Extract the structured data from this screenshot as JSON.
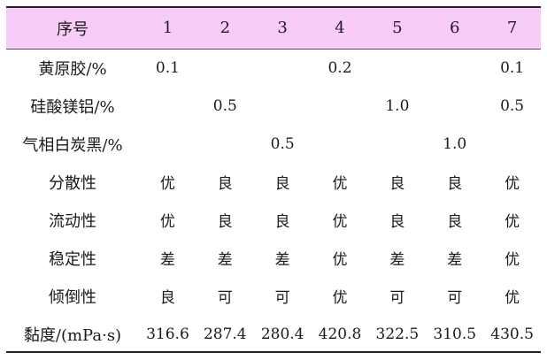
{
  "table": {
    "header": [
      "序号",
      "1",
      "2",
      "3",
      "4",
      "5",
      "6",
      "7"
    ],
    "rows": [
      {
        "label": "黄原胶/%",
        "cells": [
          "0.1",
          "",
          "",
          "0.2",
          "",
          "",
          "0.1"
        ]
      },
      {
        "label": "硅酸镁铝/%",
        "cells": [
          "",
          "0.5",
          "",
          "",
          "1.0",
          "",
          "0.5"
        ]
      },
      {
        "label": "气相白炭黑/%",
        "cells": [
          "",
          "",
          "0.5",
          "",
          "",
          "1.0",
          ""
        ]
      },
      {
        "label": "分散性",
        "cells": [
          "优",
          "良",
          "良",
          "优",
          "良",
          "良",
          "优"
        ]
      },
      {
        "label": "流动性",
        "cells": [
          "优",
          "良",
          "良",
          "优",
          "良",
          "良",
          "优"
        ]
      },
      {
        "label": "稳定性",
        "cells": [
          "差",
          "差",
          "差",
          "优",
          "差",
          "差",
          "优"
        ]
      },
      {
        "label": "倾倒性",
        "cells": [
          "良",
          "可",
          "可",
          "优",
          "可",
          "可",
          "优"
        ]
      },
      {
        "label": "黏度/(mPa·s)",
        "cells": [
          "316.6",
          "287.4",
          "280.4",
          "420.8",
          "322.5",
          "310.5",
          "430.5"
        ]
      }
    ],
    "header_color": "#f7ccf7"
  }
}
